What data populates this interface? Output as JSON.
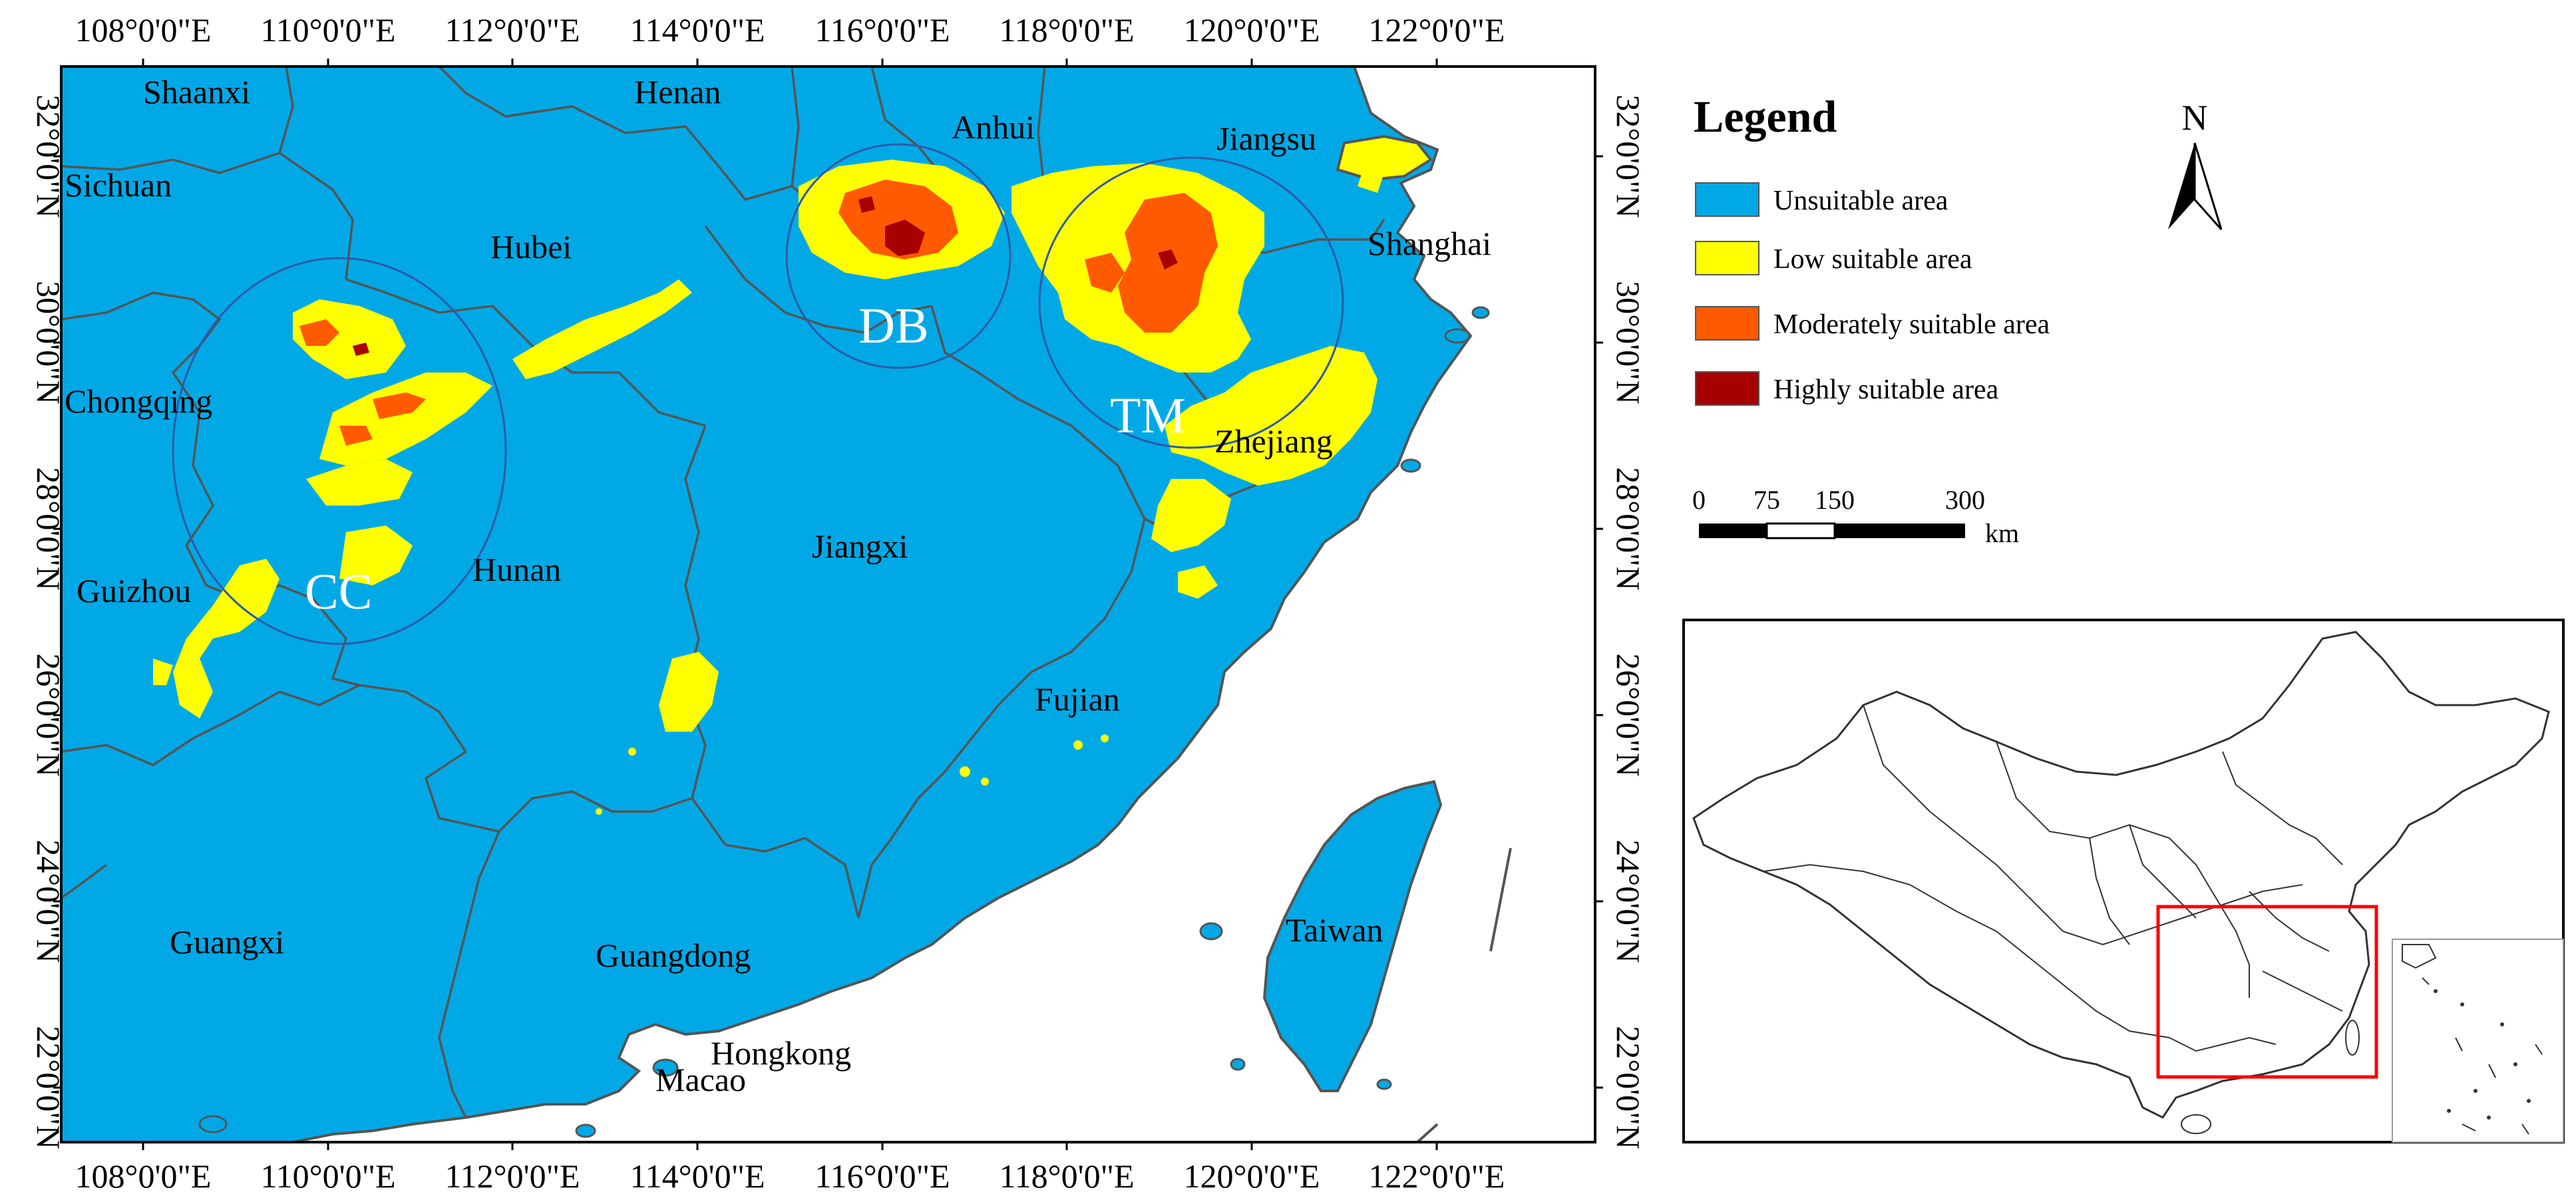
{
  "map": {
    "lon_ticks": [
      "108°0'0\"E",
      "110°0'0\"E",
      "112°0'0\"E",
      "114°0'0\"E",
      "116°0'0\"E",
      "118°0'0\"E",
      "120°0'0\"E",
      "122°0'0\"E"
    ],
    "lat_ticks": [
      "32°0'0\"N",
      "30°0'0\"N",
      "28°0'0\"N",
      "26°0'0\"N",
      "24°0'0\"N",
      "22°0'0\"N"
    ],
    "provinces": [
      {
        "id": "shaanxi",
        "label": "Shaanxi"
      },
      {
        "id": "henan",
        "label": "Henan"
      },
      {
        "id": "sichuan",
        "label": "Sichuan"
      },
      {
        "id": "anhui",
        "label": "Anhui"
      },
      {
        "id": "jiangsu",
        "label": "Jiangsu"
      },
      {
        "id": "hubei",
        "label": "Hubei"
      },
      {
        "id": "shanghai",
        "label": "Shanghai"
      },
      {
        "id": "chongqing",
        "label": "Chongqing"
      },
      {
        "id": "zhejiang",
        "label": "Zhejiang"
      },
      {
        "id": "hunan",
        "label": "Hunan"
      },
      {
        "id": "jiangxi",
        "label": "Jiangxi"
      },
      {
        "id": "guizhou",
        "label": "Guizhou"
      },
      {
        "id": "fujian",
        "label": "Fujian"
      },
      {
        "id": "guangxi",
        "label": "Guangxi"
      },
      {
        "id": "guangdong",
        "label": "Guangdong"
      },
      {
        "id": "taiwan",
        "label": "Taiwan"
      },
      {
        "id": "hongkong",
        "label": "Hongkong"
      },
      {
        "id": "macao",
        "label": "Macao"
      }
    ],
    "regions": [
      {
        "id": "cc",
        "label": "CC"
      },
      {
        "id": "db",
        "label": "DB"
      },
      {
        "id": "tm",
        "label": "TM"
      }
    ],
    "colors": {
      "unsuitable": "#00a9e6",
      "low": "#ffff00",
      "moderate": "#ff5a00",
      "high": "#a80000",
      "border": "#555555"
    }
  },
  "legend": {
    "title": "Legend",
    "items": [
      {
        "label": "Unsuitable area",
        "color": "#00a9e6"
      },
      {
        "label": "Low suitable area",
        "color": "#ffff00"
      },
      {
        "label": "Moderately suitable area",
        "color": "#ff5a00"
      },
      {
        "label": "Highly suitable area",
        "color": "#a80000"
      }
    ]
  },
  "north_arrow": {
    "label": "N"
  },
  "scale_bar": {
    "ticks": [
      "0",
      "75",
      "150",
      "300"
    ],
    "unit": "km"
  }
}
